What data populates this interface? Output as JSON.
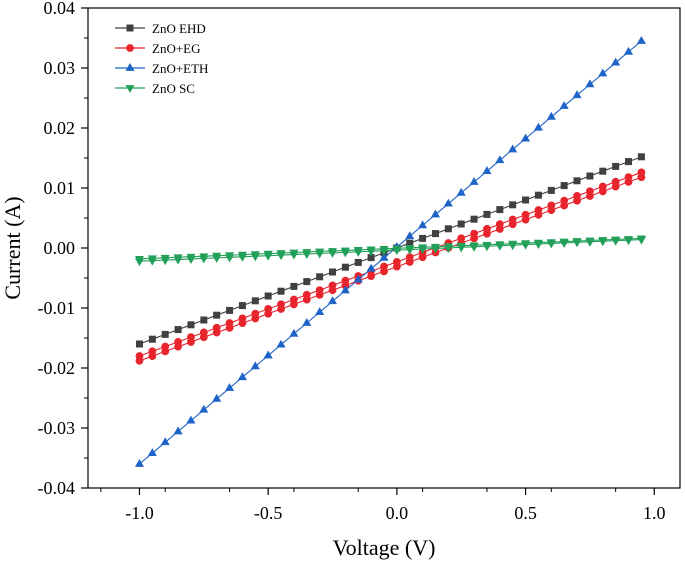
{
  "chart_data": {
    "type": "line",
    "title": "",
    "xlabel": "Voltage (V)",
    "ylabel": "Current (A)",
    "xlim": [
      -1.2,
      1.1
    ],
    "ylim": [
      -0.04,
      0.04
    ],
    "xticks": [
      -1.0,
      -0.5,
      0.0,
      0.5,
      1.0
    ],
    "xtick_labels": [
      "-1.0",
      "-0.5",
      "0.0",
      "0.5",
      "1.0"
    ],
    "yticks": [
      -0.04,
      -0.03,
      -0.02,
      -0.01,
      0.0,
      0.01,
      0.02,
      0.03,
      0.04
    ],
    "ytick_labels": [
      "-0.04",
      "-0.03",
      "-0.02",
      "-0.01",
      "0.00",
      "0.01",
      "0.02",
      "0.03",
      "0.04"
    ],
    "grid": false,
    "legend_position": "top-left",
    "sweep": {
      "start": -1.0,
      "end": 0.95,
      "step": 0.05
    },
    "series": [
      {
        "name": "ZnO EHD",
        "color": "#404040",
        "marker": "square",
        "sweeps": [
          {
            "v_start": -1.0,
            "i_start": -0.016,
            "v_end": 0.95,
            "i_end": 0.0152
          }
        ]
      },
      {
        "name": "ZnO+EG",
        "color": "#e8242c",
        "marker": "circle",
        "sweeps": [
          {
            "v_start": -1.0,
            "i_start": -0.0188,
            "v_end": 0.95,
            "i_end": 0.0118
          },
          {
            "v_start": -1.0,
            "i_start": -0.018,
            "v_end": 0.95,
            "i_end": 0.0126
          }
        ]
      },
      {
        "name": "ZnO+ETH",
        "color": "#1e63c8",
        "marker": "triangle-up",
        "sweeps": [
          {
            "v_start": -1.0,
            "i_start": -0.036,
            "v_end": 0.95,
            "i_end": 0.0345
          }
        ]
      },
      {
        "name": "ZnO SC",
        "color": "#22a05a",
        "marker": "triangle-down",
        "sweeps": [
          {
            "v_start": -1.0,
            "i_start": -0.0022,
            "v_end": 0.95,
            "i_end": 0.0014
          },
          {
            "v_start": -1.0,
            "i_start": -0.0018,
            "v_end": 0.95,
            "i_end": 0.0016
          }
        ]
      }
    ]
  }
}
